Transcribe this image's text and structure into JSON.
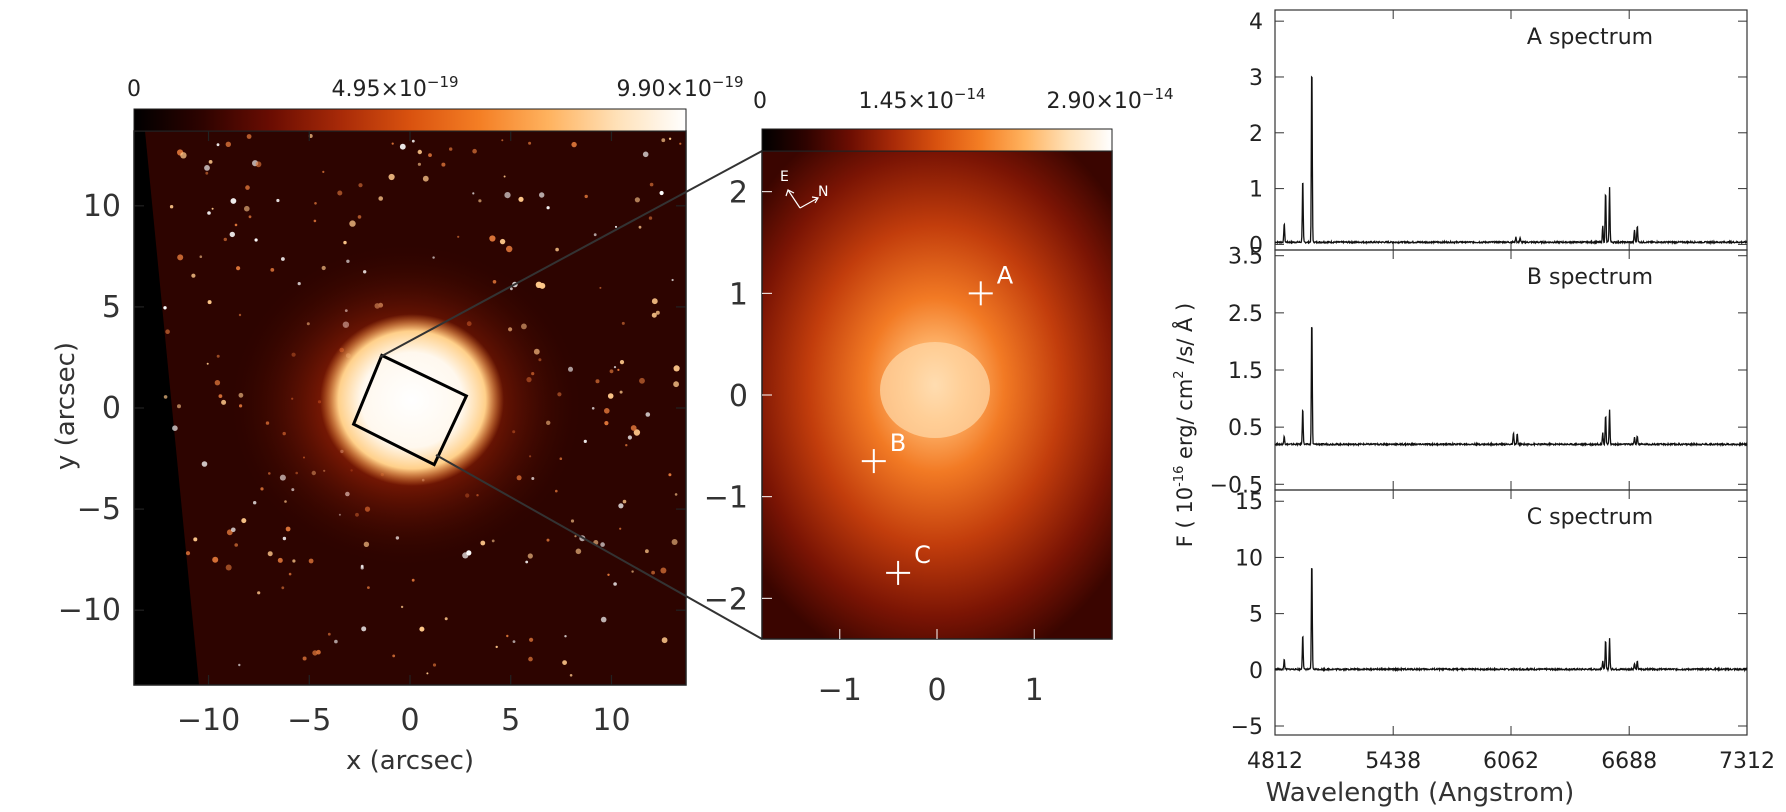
{
  "colors": {
    "colormap": [
      "#000000",
      "#2e0300",
      "#6b0d02",
      "#a82a08",
      "#d9520f",
      "#f47e24",
      "#ffb25e",
      "#ffe1b8",
      "#ffffff"
    ],
    "spectrum_line": "#111111"
  },
  "icons": [
    "compass-arrows-icon"
  ],
  "chart_data": [
    {
      "type": "heatmap",
      "panel": "large-field",
      "xlabel": "x (arcsec)",
      "ylabel": "y (arcsec)",
      "xlim": [
        -13.7,
        13.7
      ],
      "ylim": [
        -13.7,
        13.7
      ],
      "xticks": [
        {
          "v": -10,
          "t": "−10"
        },
        {
          "v": -5,
          "t": "−5"
        },
        {
          "v": 0,
          "t": "0"
        },
        {
          "v": 5,
          "t": "5"
        },
        {
          "v": 10,
          "t": "10"
        }
      ],
      "yticks": [
        {
          "v": -10,
          "t": "−10"
        },
        {
          "v": -5,
          "t": "−5"
        },
        {
          "v": 0,
          "t": "0"
        },
        {
          "v": 5,
          "t": "5"
        },
        {
          "v": 10,
          "t": "10"
        }
      ],
      "colorbar": {
        "min": "0",
        "mid_mant": "4.95×10",
        "mid_exp": "−19",
        "max_mant": "9.90×10",
        "max_exp": "−19"
      },
      "core_center": [
        0,
        0
      ],
      "zoom_box": [
        [
          -1.4,
          2.6
        ],
        [
          2.8,
          0.6
        ],
        [
          1.2,
          -2.8
        ],
        [
          -2.8,
          -0.8
        ]
      ]
    },
    {
      "type": "heatmap",
      "panel": "zoom",
      "xlim": [
        -1.8,
        1.8
      ],
      "ylim": [
        -2.4,
        2.4
      ],
      "xticks": [
        {
          "v": -1,
          "t": "−1"
        },
        {
          "v": 0,
          "t": "0"
        },
        {
          "v": 1,
          "t": "1"
        }
      ],
      "yticks": [
        {
          "v": 2,
          "t": "2"
        },
        {
          "v": 1,
          "t": "1"
        },
        {
          "v": 0,
          "t": "0"
        },
        {
          "v": -1,
          "t": "−1"
        },
        {
          "v": -2,
          "t": "−2"
        }
      ],
      "colorbar": {
        "min": "0",
        "mid_mant": "1.45×10",
        "mid_exp": "−14",
        "max_mant": "2.90×10",
        "max_exp": "−14"
      },
      "compass": {
        "e": "E",
        "n": "N"
      },
      "peak": [
        0,
        0.05
      ],
      "markers": [
        {
          "label": "A",
          "x": 0.45,
          "y": 1.0
        },
        {
          "label": "B",
          "x": -0.65,
          "y": -0.65
        },
        {
          "label": "C",
          "x": -0.4,
          "y": -1.75
        }
      ]
    },
    {
      "type": "line",
      "panel": "spectra",
      "xlabel": "Wavelength (Angstrom)",
      "ylabel_pre": "F ( 10",
      "ylabel_exp": "-16",
      "ylabel_post": " erg/ cm",
      "ylabel_exp2": "2",
      "ylabel_end": " /s/ Å )",
      "xlim": [
        4812,
        7312
      ],
      "xticks": [
        4812,
        5438,
        6062,
        6688,
        7312
      ],
      "series": [
        {
          "name": "A spectrum",
          "ylim": [
            -0.1,
            4.2
          ],
          "yticks": [
            {
              "v": 0,
              "t": "0"
            },
            {
              "v": 1,
              "t": "1"
            },
            {
              "v": 2,
              "t": "2"
            },
            {
              "v": 3,
              "t": "3"
            },
            {
              "v": 4,
              "t": "4"
            }
          ],
          "continuum": 0.04,
          "lines": [
            [
              4861,
              0.35
            ],
            [
              4959,
              1.15
            ],
            [
              5007,
              3.25
            ],
            [
              6548,
              0.3
            ],
            [
              6563,
              0.92
            ],
            [
              6584,
              0.98
            ],
            [
              6716,
              0.22
            ],
            [
              6731,
              0.3
            ],
            [
              6088,
              0.09
            ],
            [
              6110,
              0.08
            ]
          ]
        },
        {
          "name": "B spectrum",
          "ylim": [
            -0.6,
            3.6
          ],
          "yticks": [
            {
              "v": 3.5,
              "t": "3.5"
            },
            {
              "v": 2.5,
              "t": "2.5"
            },
            {
              "v": 1.5,
              "t": "1.5"
            },
            {
              "v": 0.5,
              "t": "0.5"
            },
            {
              "v": -0.5,
              "t": "−0.5"
            }
          ],
          "continuum": 0.2,
          "lines": [
            [
              4861,
              0.15
            ],
            [
              4959,
              0.65
            ],
            [
              5007,
              2.25
            ],
            [
              6548,
              0.2
            ],
            [
              6563,
              0.52
            ],
            [
              6584,
              0.6
            ],
            [
              6716,
              0.12
            ],
            [
              6731,
              0.15
            ],
            [
              6075,
              0.2
            ],
            [
              6095,
              0.18
            ]
          ]
        },
        {
          "name": "C spectrum",
          "ylim": [
            -5.8,
            16
          ],
          "yticks": [
            {
              "v": 15,
              "t": "15"
            },
            {
              "v": 10,
              "t": "10"
            },
            {
              "v": 5,
              "t": "5"
            },
            {
              "v": 0,
              "t": "0"
            },
            {
              "v": -5,
              "t": "−5"
            }
          ],
          "continuum": 0.05,
          "lines": [
            [
              4861,
              0.9
            ],
            [
              4959,
              3.2
            ],
            [
              5007,
              9.8
            ],
            [
              6548,
              0.8
            ],
            [
              6563,
              2.6
            ],
            [
              6584,
              2.75
            ],
            [
              6716,
              0.55
            ],
            [
              6731,
              0.7
            ]
          ]
        }
      ]
    }
  ]
}
